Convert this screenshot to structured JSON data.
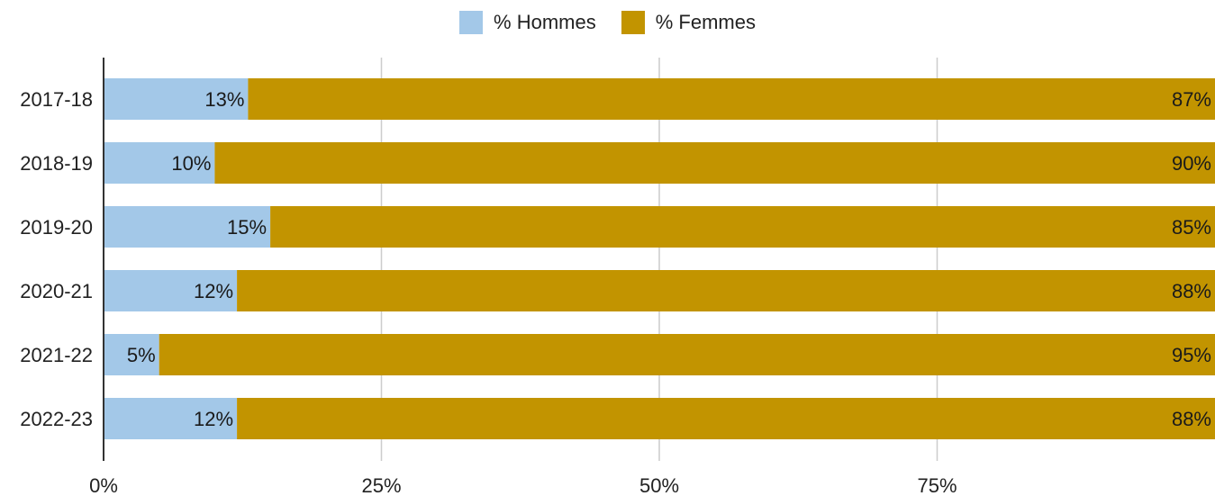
{
  "chart_data": {
    "type": "bar",
    "orientation": "horizontal",
    "stacked": true,
    "percent_stacked": true,
    "categories": [
      "2017-18",
      "2018-19",
      "2019-20",
      "2020-21",
      "2021-22",
      "2022-23"
    ],
    "series": [
      {
        "name": "% Hommes",
        "values": [
          13,
          10,
          15,
          12,
          5,
          12
        ],
        "color": "#a3c8e8"
      },
      {
        "name": "% Femmes",
        "values": [
          87,
          90,
          85,
          88,
          95,
          88
        ],
        "color": "#c29400"
      }
    ],
    "xlim": [
      0,
      100
    ],
    "x_ticks": [
      "0%",
      "25%",
      "50%",
      "75%"
    ],
    "x_tick_values": [
      0,
      25,
      50,
      75
    ],
    "data_labels": {
      "Hommes": [
        "13%",
        "10%",
        "15%",
        "12%",
        "5%",
        "12%"
      ],
      "Femmes": [
        "87%",
        "90%",
        "85%",
        "88%",
        "95%",
        "88%"
      ]
    },
    "legend_position": "top-center",
    "grid": true,
    "title": "",
    "xlabel": "",
    "ylabel": ""
  },
  "legend": {
    "hommes_label": "% Hommes",
    "femmes_label": "% Femmes"
  }
}
